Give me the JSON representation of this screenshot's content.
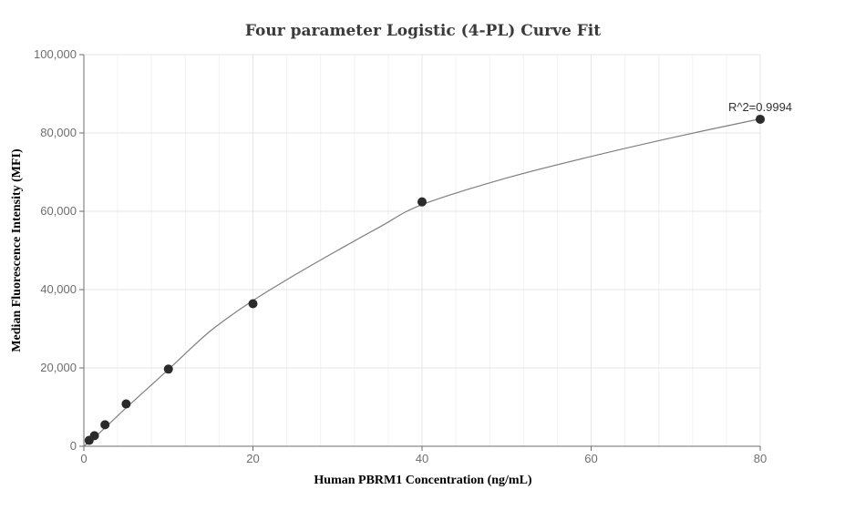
{
  "chart_data": {
    "type": "scatter",
    "title": "Four parameter Logistic (4-PL) Curve Fit",
    "xlabel": "Human PBRM1 Concentration (ng/mL)",
    "ylabel": "Median Fluorescence Intensity (MFI)",
    "xlim": [
      0,
      80
    ],
    "ylim": [
      0,
      100000
    ],
    "x_ticks": [
      0,
      20,
      40,
      60,
      80
    ],
    "y_ticks": [
      0,
      20000,
      40000,
      60000,
      80000,
      100000
    ],
    "x_tick_labels": [
      "0",
      "20",
      "40",
      "60",
      "80"
    ],
    "y_tick_labels": [
      "0",
      "20,000",
      "40,000",
      "60,000",
      "80,000",
      "100,000"
    ],
    "grid": true,
    "points": [
      {
        "x": 0.625,
        "y": 1500
      },
      {
        "x": 1.25,
        "y": 2700
      },
      {
        "x": 2.5,
        "y": 5500
      },
      {
        "x": 5,
        "y": 10800
      },
      {
        "x": 10,
        "y": 19700
      },
      {
        "x": 20,
        "y": 36400
      },
      {
        "x": 40,
        "y": 62400
      },
      {
        "x": 80,
        "y": 83500
      }
    ],
    "fit_curve": [
      {
        "x": 0,
        "y": 0
      },
      {
        "x": 1.25,
        "y": 2300
      },
      {
        "x": 2.5,
        "y": 4700
      },
      {
        "x": 5,
        "y": 9800
      },
      {
        "x": 10,
        "y": 19600
      },
      {
        "x": 15,
        "y": 29500
      },
      {
        "x": 20,
        "y": 37200
      },
      {
        "x": 25,
        "y": 43800
      },
      {
        "x": 30,
        "y": 50000
      },
      {
        "x": 35,
        "y": 56000
      },
      {
        "x": 40,
        "y": 61700
      },
      {
        "x": 50,
        "y": 68500
      },
      {
        "x": 60,
        "y": 74000
      },
      {
        "x": 70,
        "y": 79000
      },
      {
        "x": 80,
        "y": 83600
      }
    ],
    "annotation": "R^2=0.9994",
    "colors": {
      "points": "#2b2b2b",
      "curve": "#7f7f7f",
      "grid": "#e6e6e6",
      "axis": "#6e6e6e"
    }
  }
}
